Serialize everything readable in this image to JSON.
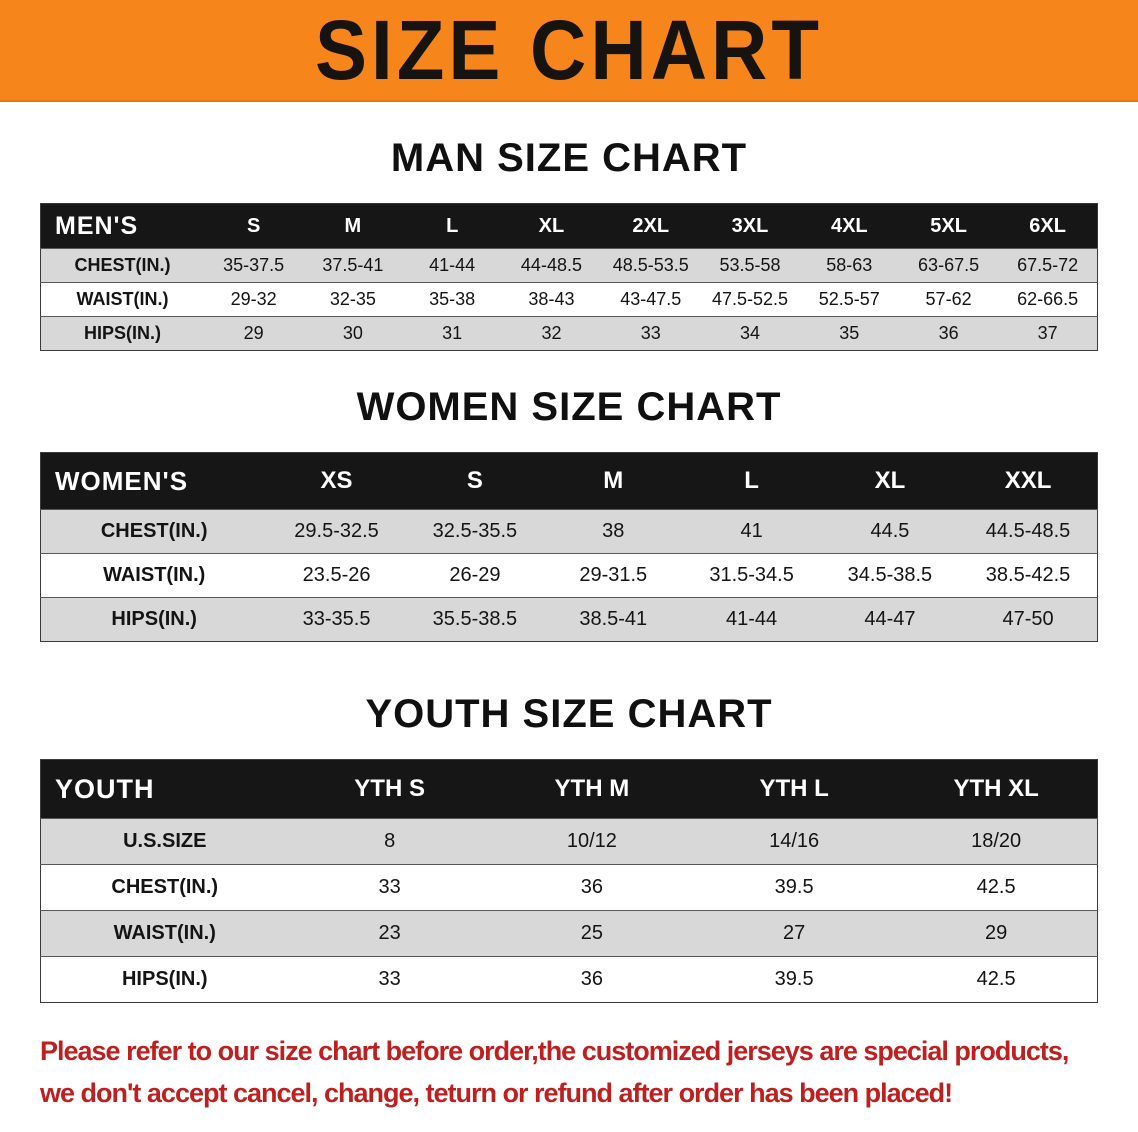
{
  "banner": {
    "title": "SIZE CHART"
  },
  "colors": {
    "banner_orange": "#f6861c",
    "header_black": "#161616",
    "stripe_gray": "#d8d8d8",
    "footer_red": "#c01f1f"
  },
  "sections": [
    {
      "heading": "MAN SIZE CHART",
      "table": {
        "corner": "MEN'S",
        "columns": [
          "S",
          "M",
          "L",
          "XL",
          "2XL",
          "3XL",
          "4XL",
          "5XL",
          "6XL"
        ],
        "rows": [
          {
            "label": "CHEST(IN.)",
            "values": [
              "35-37.5",
              "37.5-41",
              "41-44",
              "44-48.5",
              "48.5-53.5",
              "53.5-58",
              "58-63",
              "63-67.5",
              "67.5-72"
            ]
          },
          {
            "label": "WAIST(IN.)",
            "values": [
              "29-32",
              "32-35",
              "35-38",
              "38-43",
              "43-47.5",
              "47.5-52.5",
              "52.5-57",
              "57-62",
              "62-66.5"
            ]
          },
          {
            "label": "HIPS(IN.)",
            "values": [
              "29",
              "30",
              "31",
              "32",
              "33",
              "34",
              "35",
              "36",
              "37"
            ]
          }
        ]
      }
    },
    {
      "heading": "WOMEN SIZE CHART",
      "table": {
        "corner": "WOMEN'S",
        "columns": [
          "XS",
          "S",
          "M",
          "L",
          "XL",
          "XXL"
        ],
        "rows": [
          {
            "label": "CHEST(IN.)",
            "values": [
              "29.5-32.5",
              "32.5-35.5",
              "38",
              "41",
              "44.5",
              "44.5-48.5"
            ]
          },
          {
            "label": "WAIST(IN.)",
            "values": [
              "23.5-26",
              "26-29",
              "29-31.5",
              "31.5-34.5",
              "34.5-38.5",
              "38.5-42.5"
            ]
          },
          {
            "label": "HIPS(IN.)",
            "values": [
              "33-35.5",
              "35.5-38.5",
              "38.5-41",
              "41-44",
              "44-47",
              "47-50"
            ]
          }
        ]
      }
    },
    {
      "heading": "YOUTH SIZE CHART",
      "table": {
        "corner": "YOUTH",
        "columns": [
          "YTH S",
          "YTH M",
          "YTH L",
          "YTH XL"
        ],
        "rows": [
          {
            "label": "U.S.SIZE",
            "values": [
              "8",
              "10/12",
              "14/16",
              "18/20"
            ]
          },
          {
            "label": "CHEST(IN.)",
            "values": [
              "33",
              "36",
              "39.5",
              "42.5"
            ]
          },
          {
            "label": "WAIST(IN.)",
            "values": [
              "23",
              "25",
              "27",
              "29"
            ]
          },
          {
            "label": "HIPS(IN.)",
            "values": [
              "33",
              "36",
              "39.5",
              "42.5"
            ]
          }
        ]
      }
    }
  ],
  "footer": {
    "line1": "Please refer to our size chart before order,the customized jerseys are special products,",
    "line2": "we don't accept cancel, change, teturn or refund after order has been placed!"
  }
}
